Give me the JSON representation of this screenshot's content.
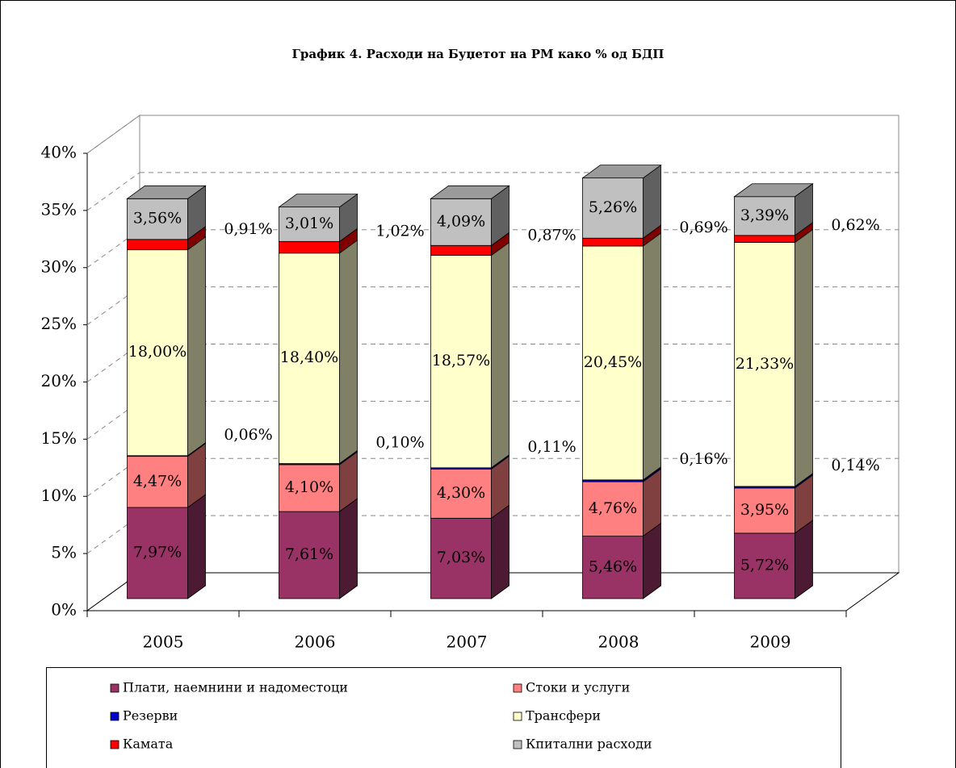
{
  "chart_data": {
    "type": "bar3d_stacked",
    "title": "График 4. Расходи на Буџетот на РМ како % од БДП",
    "categories": [
      "2005",
      "2006",
      "2007",
      "2008",
      "2009"
    ],
    "series": [
      {
        "name": "Плати, наемнини и надоместоци",
        "color": "#993366",
        "values": [
          7.97,
          7.61,
          7.03,
          5.46,
          5.72
        ],
        "value_labels": [
          "7,97%",
          "7,61%",
          "7,03%",
          "5,46%",
          "5,72%"
        ]
      },
      {
        "name": "Стоки и услуги",
        "color": "#ff8080",
        "values": [
          4.47,
          4.1,
          4.3,
          4.76,
          3.95
        ],
        "value_labels": [
          "4,47%",
          "4,10%",
          "4,30%",
          "4,76%",
          "3,95%"
        ]
      },
      {
        "name": "Резерви",
        "color": "#0000cc",
        "values": [
          0.06,
          0.1,
          0.11,
          0.16,
          0.14
        ],
        "value_labels": [
          "0,06%",
          "0,10%",
          "0,11%",
          "0,16%",
          "0,14%"
        ]
      },
      {
        "name": "Трансфери",
        "color": "#ffffcc",
        "values": [
          18.0,
          18.4,
          18.57,
          20.45,
          21.33
        ],
        "value_labels": [
          "18,00%",
          "18,40%",
          "18,57%",
          "20,45%",
          "21,33%"
        ]
      },
      {
        "name": "Камата",
        "color": "#ff0000",
        "values": [
          0.91,
          1.02,
          0.87,
          0.69,
          0.62
        ],
        "value_labels": [
          "0,91%",
          "1,02%",
          "0,87%",
          "0,69%",
          "0,62%"
        ]
      },
      {
        "name": "Кпитални расходи",
        "color": "#c0c0c0",
        "values": [
          3.56,
          3.01,
          4.09,
          5.26,
          3.39
        ],
        "value_labels": [
          "3,56%",
          "3,01%",
          "4,09%",
          "5,26%",
          "3,39%"
        ]
      }
    ],
    "ylim": [
      0,
      40
    ],
    "yticks": [
      {
        "value": 0,
        "label": "0%"
      },
      {
        "value": 5,
        "label": "5%"
      },
      {
        "value": 10,
        "label": "10%"
      },
      {
        "value": 15,
        "label": "15%"
      },
      {
        "value": 20,
        "label": "20%"
      },
      {
        "value": 25,
        "label": "25%"
      },
      {
        "value": 30,
        "label": "30%"
      },
      {
        "value": 35,
        "label": "35%"
      },
      {
        "value": 40,
        "label": "40%"
      }
    ],
    "grid": true
  }
}
